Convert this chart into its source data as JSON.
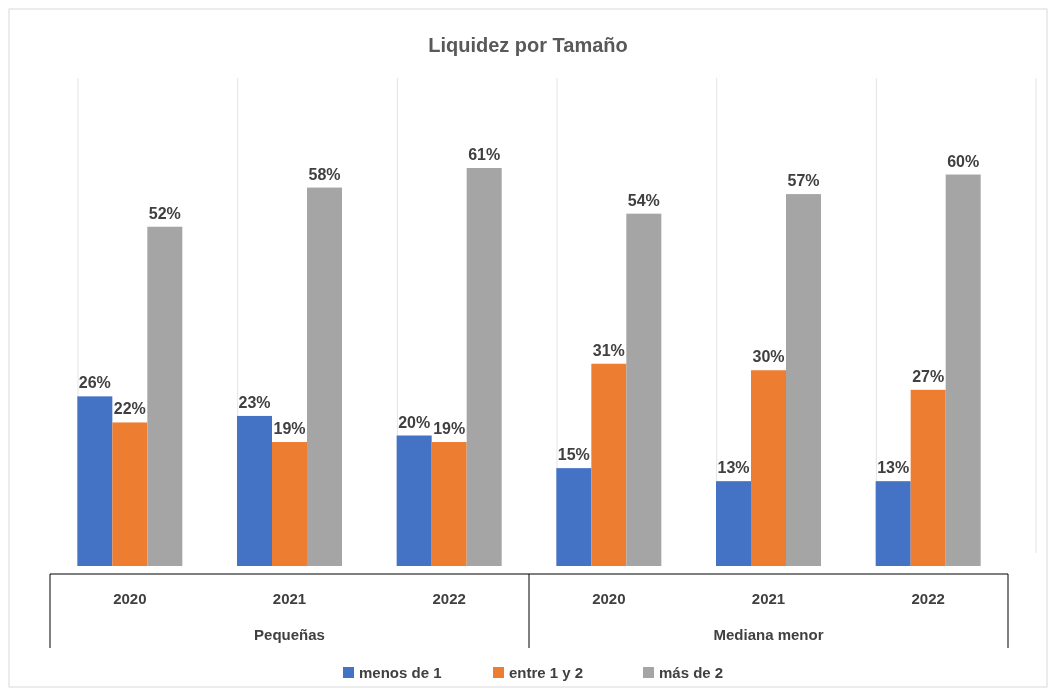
{
  "chart_data": {
    "type": "bar",
    "title": "Liquidez por Tamaño",
    "categories": [
      "2020",
      "2021",
      "2022",
      "2020",
      "2021",
      "2022"
    ],
    "series": [
      {
        "name": "menos de 1",
        "color": "#4472c4",
        "values": [
          26,
          23,
          20,
          15,
          13,
          13
        ],
        "value_labels": [
          "26%",
          "23%",
          "20%",
          "15%",
          "13%",
          "13%"
        ]
      },
      {
        "name": "entre 1 y 2",
        "color": "#ed7d31",
        "values": [
          22,
          19,
          19,
          31,
          30,
          27
        ],
        "value_labels": [
          "22%",
          "19%",
          "19%",
          "31%",
          "30%",
          "27%"
        ]
      },
      {
        "name": "más de 2",
        "color": "#a5a5a5",
        "values": [
          52,
          58,
          61,
          54,
          57,
          60
        ],
        "value_labels": [
          "52%",
          "58%",
          "61%",
          "54%",
          "57%",
          "60%"
        ]
      }
    ],
    "annotations": [
      "Pequeñas",
      "Mediana menor"
    ],
    "legend": "bottom"
  }
}
